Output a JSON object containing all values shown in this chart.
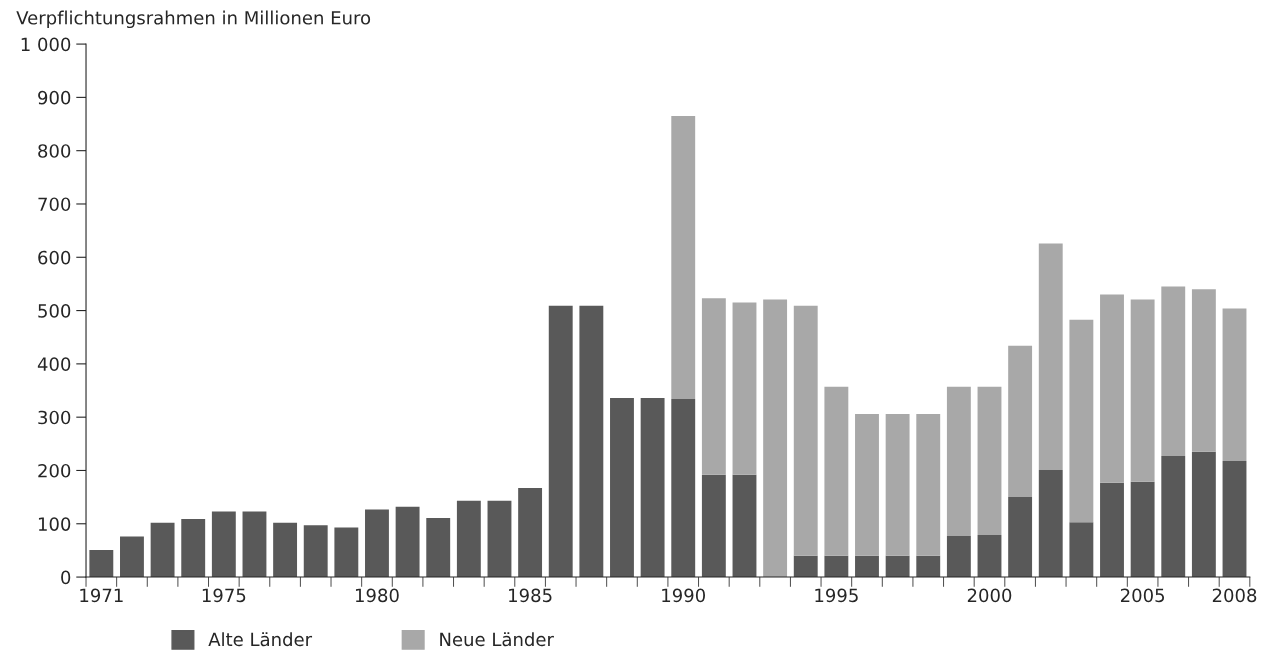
{
  "chart_data": {
    "type": "bar",
    "stacked": true,
    "ylabel": "Verpflichtungsrahmen in Millionen Euro",
    "categories": [
      "1971",
      null,
      null,
      null,
      "1975",
      null,
      null,
      null,
      null,
      "1980",
      null,
      null,
      null,
      null,
      "1985",
      null,
      null,
      null,
      null,
      "1990",
      null,
      null,
      null,
      null,
      "1995",
      null,
      null,
      null,
      null,
      "2000",
      null,
      null,
      null,
      null,
      "2005",
      null,
      null,
      "2008"
    ],
    "series": [
      {
        "name": "Alte Länder",
        "color": "#595959",
        "values": [
          51,
          76,
          102,
          109,
          123,
          123,
          102,
          97,
          93,
          127,
          132,
          111,
          143,
          143,
          167,
          509,
          509,
          336,
          336,
          334,
          192,
          192,
          null,
          40,
          40,
          40,
          40,
          40,
          77,
          79,
          150,
          201,
          103,
          177,
          179,
          227,
          235,
          218
        ]
      },
      {
        "name": "Neue Länder",
        "color": "#a8a8a8",
        "values": [
          null,
          null,
          null,
          null,
          null,
          null,
          null,
          null,
          null,
          null,
          null,
          null,
          null,
          null,
          null,
          null,
          null,
          null,
          null,
          531,
          331,
          323,
          521,
          469,
          317,
          266,
          266,
          266,
          280,
          278,
          284,
          425,
          380,
          353,
          342,
          318,
          305,
          286
        ]
      }
    ],
    "ylim": [
      0,
      1000
    ],
    "yticks": [
      0,
      100,
      200,
      300,
      400,
      500,
      600,
      700,
      800,
      900,
      {
        "value": 1000,
        "label": "1 000"
      }
    ],
    "legend": "bottom left"
  }
}
